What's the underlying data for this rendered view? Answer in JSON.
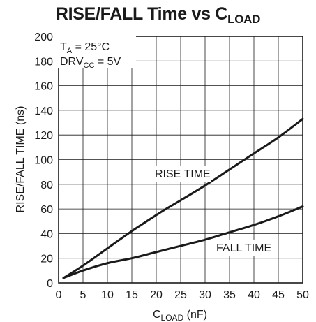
{
  "chart_data": {
    "type": "line",
    "title_main": "RISE/FALL Time vs C",
    "title_sub": "LOAD",
    "xlabel_main": "C",
    "xlabel_sub": "LOAD",
    "xlabel_unit": " (nF)",
    "ylabel": "RISE/FALL TIME (ns)",
    "xlim": [
      0,
      50
    ],
    "ylim": [
      0,
      200
    ],
    "xticks": [
      0,
      5,
      10,
      15,
      20,
      25,
      30,
      35,
      40,
      45,
      50
    ],
    "yticks": [
      0,
      20,
      40,
      60,
      80,
      100,
      120,
      140,
      160,
      180,
      200
    ],
    "grid": true,
    "conditions": [
      {
        "main": "T",
        "sub": "A",
        "rest": " = 25°C"
      },
      {
        "main": "DRV",
        "sub": "CC",
        "rest": " = 5V"
      }
    ],
    "series": [
      {
        "name": "RISE TIME",
        "x": [
          1,
          5,
          10,
          15,
          20,
          22,
          25,
          30,
          35,
          40,
          45,
          50
        ],
        "y": [
          4,
          14,
          28,
          42,
          55,
          60,
          67,
          79,
          92,
          105,
          118,
          133
        ]
      },
      {
        "name": "FALL TIME",
        "x": [
          1,
          5,
          10,
          15,
          20,
          25,
          30,
          35,
          40,
          45,
          50
        ],
        "y": [
          4,
          10,
          16,
          20,
          25,
          30,
          35,
          41,
          47,
          54,
          62
        ]
      }
    ],
    "line_color": "#1a1a1a"
  }
}
